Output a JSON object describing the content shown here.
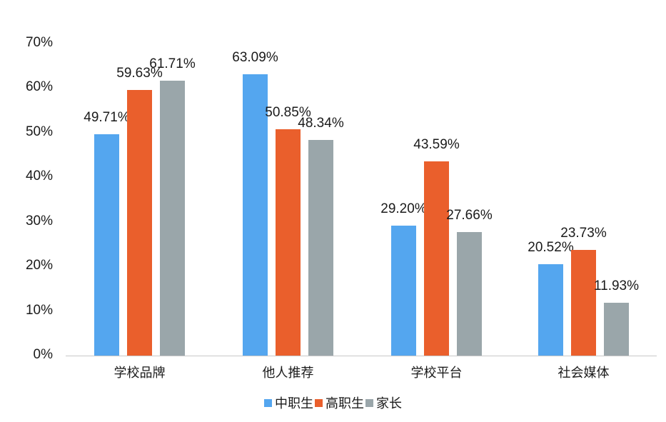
{
  "chart_data": {
    "type": "bar",
    "title": "",
    "xlabel": "",
    "ylabel": "",
    "ylim": [
      0,
      70
    ],
    "yticks": [
      "0%",
      "10%",
      "20%",
      "30%",
      "40%",
      "50%",
      "60%",
      "70%"
    ],
    "categories": [
      "学校品牌",
      "他人推荐",
      "学校平台",
      "社会媒体"
    ],
    "series": [
      {
        "name": "中职生",
        "color": "#54a6ef",
        "values": [
          49.71,
          63.09,
          29.2,
          20.52
        ],
        "labels": [
          "49.71%",
          "63.09%",
          "29.20%",
          "20.52%"
        ]
      },
      {
        "name": "高职生",
        "color": "#ea5f2c",
        "values": [
          59.63,
          50.85,
          43.59,
          23.73
        ],
        "labels": [
          "59.63%",
          "50.85%",
          "43.59%",
          "23.73%"
        ]
      },
      {
        "name": "家长",
        "color": "#9aa6aa",
        "values": [
          61.71,
          48.34,
          27.66,
          11.93
        ],
        "labels": [
          "61.71%",
          "48.34%",
          "27.66%",
          "11.93%"
        ]
      }
    ],
    "grid": false,
    "legend_position": "bottom"
  }
}
